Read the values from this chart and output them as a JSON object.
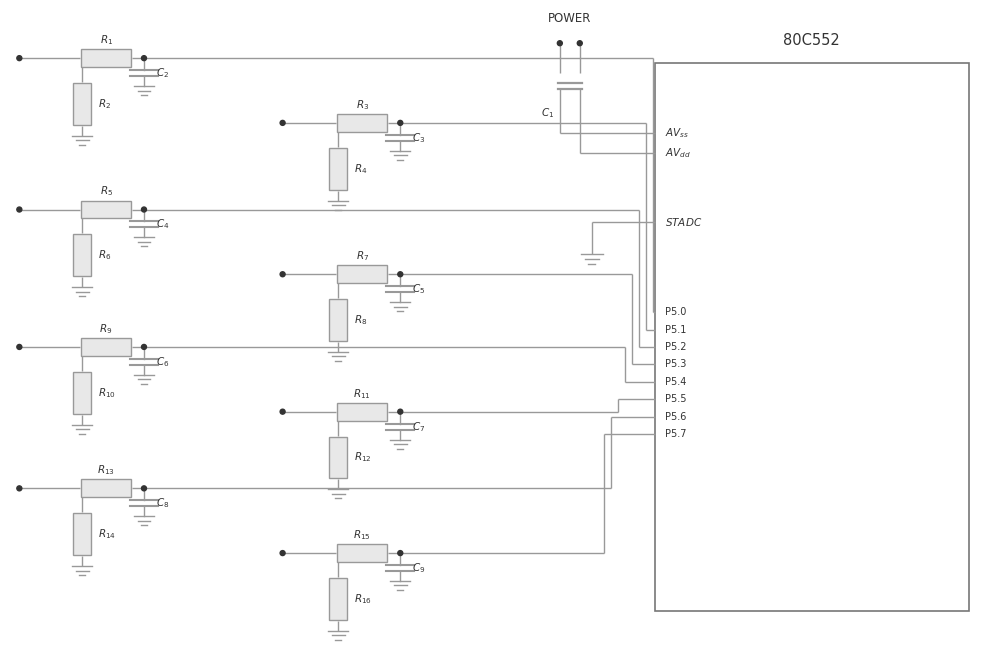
{
  "lw": 1.0,
  "lc": "#999999",
  "tc": "#333333",
  "fc": "#e8e8e8",
  "dot_r": 0.025,
  "figsize": [
    10.0,
    6.67
  ],
  "dpi": 100,
  "xlim": [
    0,
    10
  ],
  "ylim": [
    0,
    6.67
  ]
}
